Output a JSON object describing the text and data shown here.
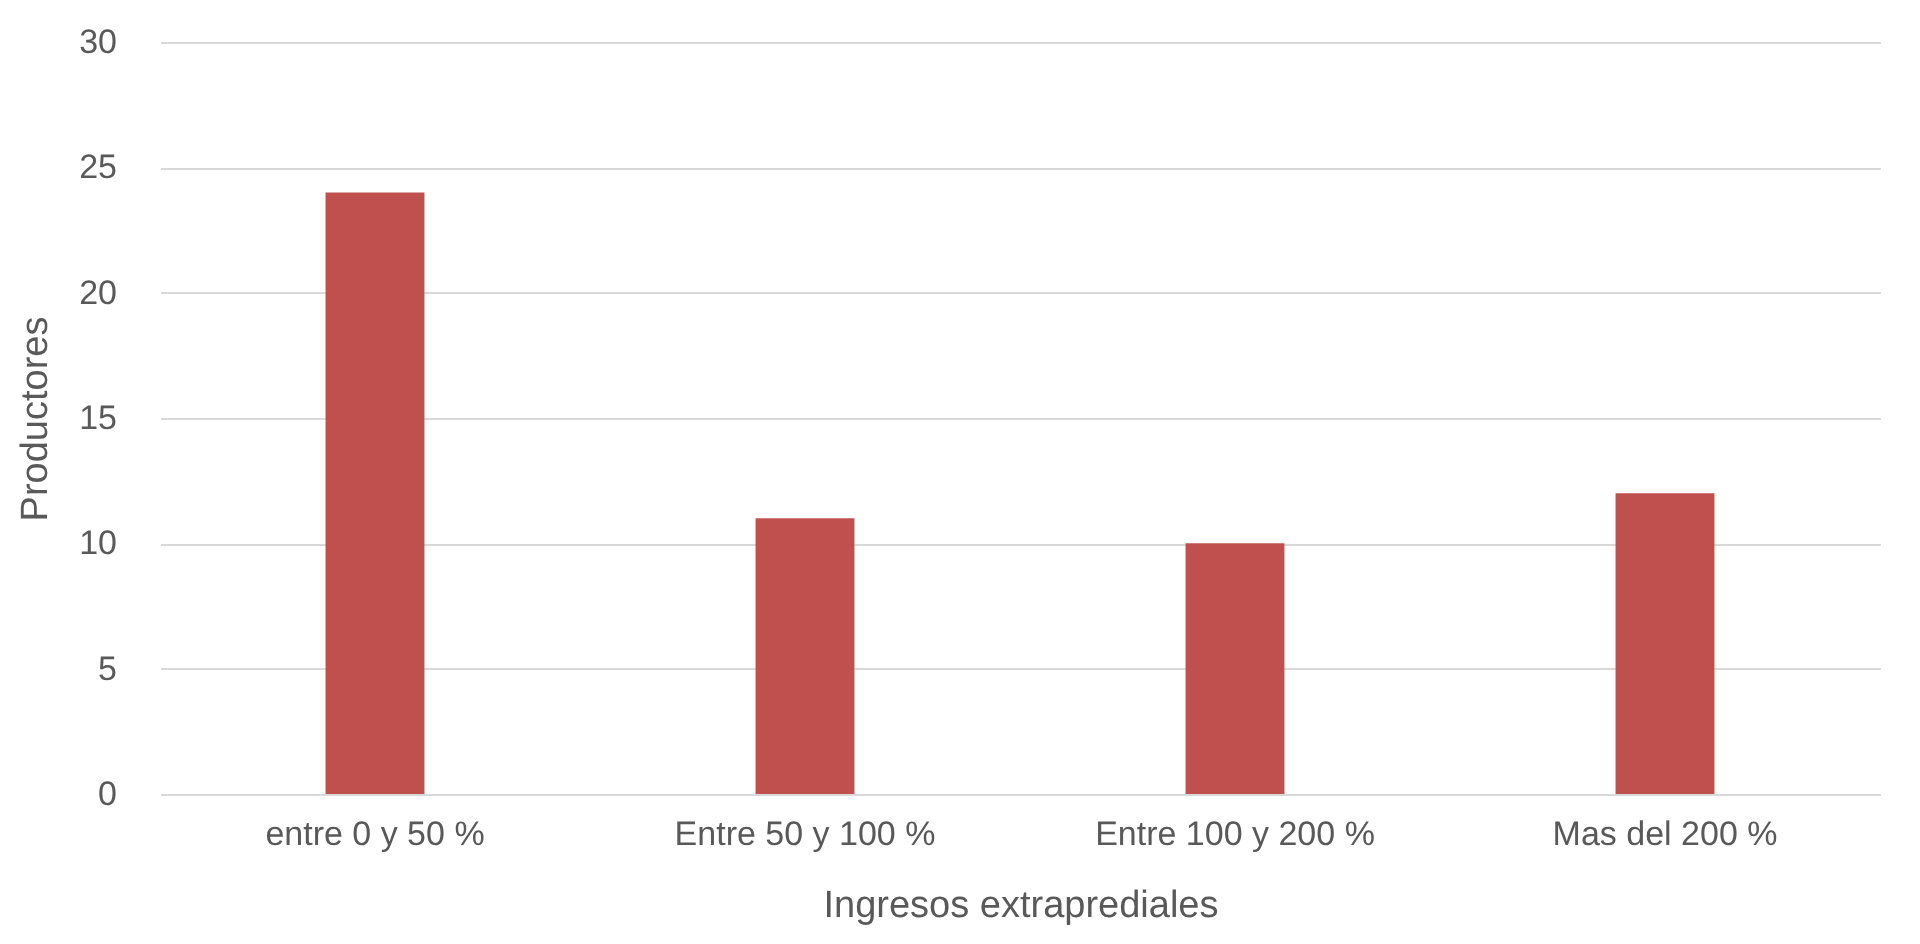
{
  "chart_data": {
    "type": "bar",
    "xlabel": "Ingresos extraprediales",
    "ylabel": "Productores",
    "categories": [
      "entre 0 y 50 %",
      "Entre 50 y 100 %",
      "Entre 100 y 200 %",
      "Mas del 200 %"
    ],
    "values": [
      24,
      11,
      10,
      12
    ],
    "color": "#c0504d",
    "ylim": [
      0,
      30
    ],
    "yticks": [
      0,
      5,
      10,
      15,
      20,
      25,
      30
    ],
    "grid": "y"
  }
}
